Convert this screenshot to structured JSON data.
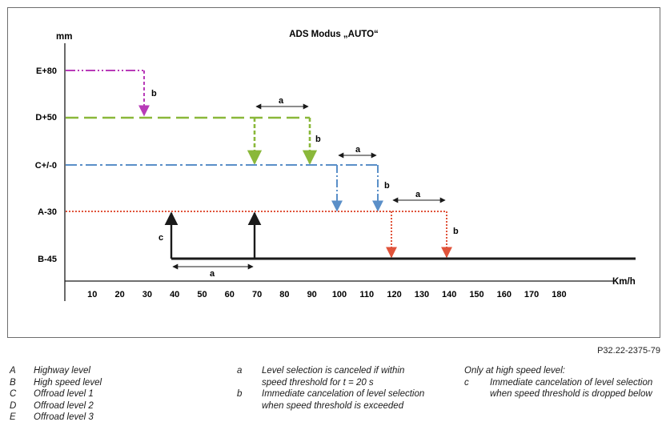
{
  "diagram": {
    "title": "ADS Modus „AUTO“",
    "y_unit": "mm",
    "x_unit": "Km/h",
    "y_levels": [
      "E+80",
      "D+50",
      "C+/-0",
      "A-30",
      "B-45"
    ],
    "x_ticks": [
      "10",
      "20",
      "30",
      "40",
      "50",
      "60",
      "70",
      "80",
      "90",
      "100",
      "110",
      "120",
      "130",
      "140",
      "150",
      "160",
      "170",
      "180"
    ],
    "labels": {
      "a": "a",
      "b": "b",
      "c": "c"
    },
    "colors": {
      "E": "#b83bb8",
      "D": "#8ab83a",
      "C": "#5a8fc8",
      "A": "#e0533a",
      "B": "#1a1a1a"
    }
  },
  "figure_ref": "P32.22-2375-79",
  "legend_levels": [
    {
      "key": "A",
      "text": "Highway level"
    },
    {
      "key": "B",
      "text": "High speed level"
    },
    {
      "key": "C",
      "text": "Offroad level 1"
    },
    {
      "key": "D",
      "text": "Offroad level 2"
    },
    {
      "key": "E",
      "text": "Offroad level 3"
    }
  ],
  "legend_notes": [
    {
      "key": "a",
      "text": "Level selection is canceled if within speed threshold for t = 20 s"
    },
    {
      "key": "b",
      "text": "Immediate cancelation of level selection when speed threshold is exceeded"
    }
  ],
  "legend_high_speed": {
    "header": "Only at high speed level:",
    "key": "c",
    "text": "Immediate cancelation of level selection when speed threshold is dropped below"
  }
}
